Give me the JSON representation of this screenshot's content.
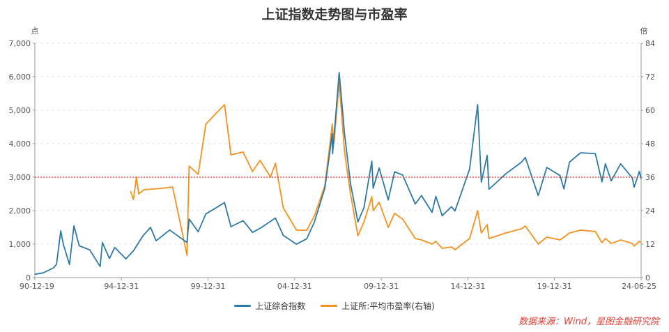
{
  "chart_data": {
    "type": "line",
    "title": "上证指数走势图与市盈率",
    "left_unit": "点",
    "right_unit": "倍",
    "x_range": [
      "1990-12-19",
      "2024-06-25"
    ],
    "x_ticks": [
      "90-12-19",
      "94-12-31",
      "99-12-31",
      "04-12-31",
      "09-12-31",
      "14-12-31",
      "19-12-31",
      "24-06-25"
    ],
    "y_left": {
      "min": 0,
      "max": 7000,
      "ticks": [
        "0",
        "1,000",
        "2,000",
        "3,000",
        "4,000",
        "5,000",
        "6,000",
        "7,000"
      ]
    },
    "y_right": {
      "min": 0,
      "max": 84,
      "ticks": [
        "0",
        "12",
        "24",
        "36",
        "48",
        "60",
        "72",
        "84"
      ]
    },
    "reference_line": {
      "axis": "left",
      "value": 3000,
      "style": "dotted",
      "color": "#e03c31"
    },
    "grid": "horizontal-dashed",
    "legend_position": "bottom",
    "series": [
      {
        "name": "上证综合指数",
        "axis": "left",
        "color": "#2e7aa6",
        "points": [
          [
            "1990-12-19",
            100
          ],
          [
            "1991-06-01",
            140
          ],
          [
            "1991-12-31",
            292
          ],
          [
            "1992-03-01",
            400
          ],
          [
            "1992-05-25",
            1400
          ],
          [
            "1992-07-15",
            1000
          ],
          [
            "1992-11-17",
            390
          ],
          [
            "1993-02-15",
            1550
          ],
          [
            "1993-06-01",
            950
          ],
          [
            "1993-12-31",
            830
          ],
          [
            "1994-07-29",
            330
          ],
          [
            "1994-09-13",
            1050
          ],
          [
            "1995-02-01",
            570
          ],
          [
            "1995-05-20",
            900
          ],
          [
            "1995-12-31",
            560
          ],
          [
            "1996-06-01",
            800
          ],
          [
            "1996-12-11",
            1250
          ],
          [
            "1997-05-12",
            1500
          ],
          [
            "1997-09-01",
            1100
          ],
          [
            "1998-06-03",
            1420
          ],
          [
            "1999-05-18",
            1050
          ],
          [
            "1999-06-30",
            1750
          ],
          [
            "1999-12-31",
            1370
          ],
          [
            "2000-06-01",
            1900
          ],
          [
            "2001-06-14",
            2240
          ],
          [
            "2001-10-22",
            1520
          ],
          [
            "2002-06-25",
            1700
          ],
          [
            "2003-01-01",
            1350
          ],
          [
            "2003-07-01",
            1500
          ],
          [
            "2004-04-07",
            1780
          ],
          [
            "2004-09-13",
            1260
          ],
          [
            "2005-06-06",
            998
          ],
          [
            "2005-12-31",
            1160
          ],
          [
            "2006-06-01",
            1650
          ],
          [
            "2006-12-31",
            2675
          ],
          [
            "2007-05-29",
            4300
          ],
          [
            "2007-06-05",
            3700
          ],
          [
            "2007-10-16",
            6124
          ],
          [
            "2008-02-01",
            4300
          ],
          [
            "2008-06-01",
            2800
          ],
          [
            "2008-10-28",
            1664
          ],
          [
            "2009-03-01",
            2100
          ],
          [
            "2009-08-04",
            3478
          ],
          [
            "2009-09-01",
            2670
          ],
          [
            "2009-12-31",
            3277
          ],
          [
            "2010-07-02",
            2320
          ],
          [
            "2010-11-08",
            3159
          ],
          [
            "2011-04-18",
            3067
          ],
          [
            "2011-12-31",
            2200
          ],
          [
            "2012-05-04",
            2450
          ],
          [
            "2012-12-04",
            1950
          ],
          [
            "2013-02-18",
            2430
          ],
          [
            "2013-06-25",
            1850
          ],
          [
            "2013-12-31",
            2116
          ],
          [
            "2014-03-12",
            1990
          ],
          [
            "2014-12-31",
            3235
          ],
          [
            "2015-06-12",
            5166
          ],
          [
            "2015-08-26",
            2850
          ],
          [
            "2015-12-22",
            3650
          ],
          [
            "2016-01-27",
            2638
          ],
          [
            "2016-12-31",
            3100
          ],
          [
            "2017-11-14",
            3450
          ],
          [
            "2018-01-29",
            3587
          ],
          [
            "2018-10-18",
            2450
          ],
          [
            "2019-04-08",
            3290
          ],
          [
            "2019-12-31",
            3050
          ],
          [
            "2020-03-19",
            2650
          ],
          [
            "2020-07-09",
            3450
          ],
          [
            "2021-02-18",
            3730
          ],
          [
            "2021-12-13",
            3700
          ],
          [
            "2022-04-26",
            2860
          ],
          [
            "2022-07-04",
            3400
          ],
          [
            "2022-10-31",
            2890
          ],
          [
            "2023-05-09",
            3400
          ],
          [
            "2023-12-31",
            2975
          ],
          [
            "2024-02-05",
            2702
          ],
          [
            "2024-05-20",
            3170
          ],
          [
            "2024-06-25",
            2950
          ]
        ]
      },
      {
        "name": "上证所:平均市盈率(右轴)",
        "axis": "right",
        "color": "#f3921f",
        "points": [
          [
            "1996-04-01",
            31
          ],
          [
            "1996-06-01",
            28
          ],
          [
            "1996-08-01",
            36
          ],
          [
            "1996-09-15",
            30
          ],
          [
            "1996-12-31",
            31.5
          ],
          [
            "1997-12-31",
            32
          ],
          [
            "1998-08-01",
            32.5
          ],
          [
            "1999-05-18",
            8
          ],
          [
            "1999-06-30",
            40
          ],
          [
            "1999-12-31",
            37
          ],
          [
            "2000-06-01",
            55
          ],
          [
            "2000-12-31",
            59
          ],
          [
            "2001-06-14",
            62
          ],
          [
            "2001-10-22",
            44
          ],
          [
            "2002-06-25",
            45
          ],
          [
            "2002-12-31",
            38
          ],
          [
            "2003-06-01",
            42
          ],
          [
            "2003-12-31",
            36
          ],
          [
            "2004-04-07",
            41
          ],
          [
            "2004-09-13",
            25
          ],
          [
            "2005-06-06",
            17
          ],
          [
            "2005-12-31",
            17
          ],
          [
            "2006-06-01",
            22
          ],
          [
            "2006-12-31",
            33
          ],
          [
            "2007-05-29",
            55
          ],
          [
            "2007-07-01",
            48
          ],
          [
            "2007-10-16",
            70
          ],
          [
            "2008-02-01",
            45
          ],
          [
            "2008-06-01",
            30
          ],
          [
            "2008-10-28",
            15
          ],
          [
            "2009-03-01",
            20
          ],
          [
            "2009-08-04",
            29
          ],
          [
            "2009-09-01",
            24
          ],
          [
            "2009-12-31",
            27
          ],
          [
            "2010-07-02",
            18
          ],
          [
            "2010-11-08",
            23
          ],
          [
            "2011-04-18",
            21
          ],
          [
            "2011-12-31",
            14
          ],
          [
            "2012-05-04",
            13.5
          ],
          [
            "2012-12-04",
            12
          ],
          [
            "2013-02-18",
            13
          ],
          [
            "2013-06-25",
            10.5
          ],
          [
            "2013-12-31",
            11
          ],
          [
            "2014-03-12",
            10
          ],
          [
            "2014-12-31",
            14
          ],
          [
            "2015-06-12",
            24
          ],
          [
            "2015-08-26",
            16
          ],
          [
            "2015-12-22",
            19
          ],
          [
            "2016-01-27",
            14
          ],
          [
            "2016-12-31",
            16
          ],
          [
            "2017-11-14",
            17.5
          ],
          [
            "2018-01-29",
            18.5
          ],
          [
            "2018-10-18",
            12
          ],
          [
            "2019-04-08",
            14.5
          ],
          [
            "2019-12-31",
            13.5
          ],
          [
            "2020-07-09",
            16
          ],
          [
            "2021-02-18",
            17
          ],
          [
            "2021-12-13",
            16.5
          ],
          [
            "2022-04-26",
            12.5
          ],
          [
            "2022-07-04",
            14
          ],
          [
            "2022-10-31",
            12.2
          ],
          [
            "2023-05-09",
            13.5
          ],
          [
            "2023-12-31",
            12.2
          ],
          [
            "2024-02-05",
            11.3
          ],
          [
            "2024-05-20",
            13
          ],
          [
            "2024-06-25",
            12.5
          ]
        ]
      }
    ]
  },
  "source_note": "数据来源：Wind，星图金融研究院"
}
